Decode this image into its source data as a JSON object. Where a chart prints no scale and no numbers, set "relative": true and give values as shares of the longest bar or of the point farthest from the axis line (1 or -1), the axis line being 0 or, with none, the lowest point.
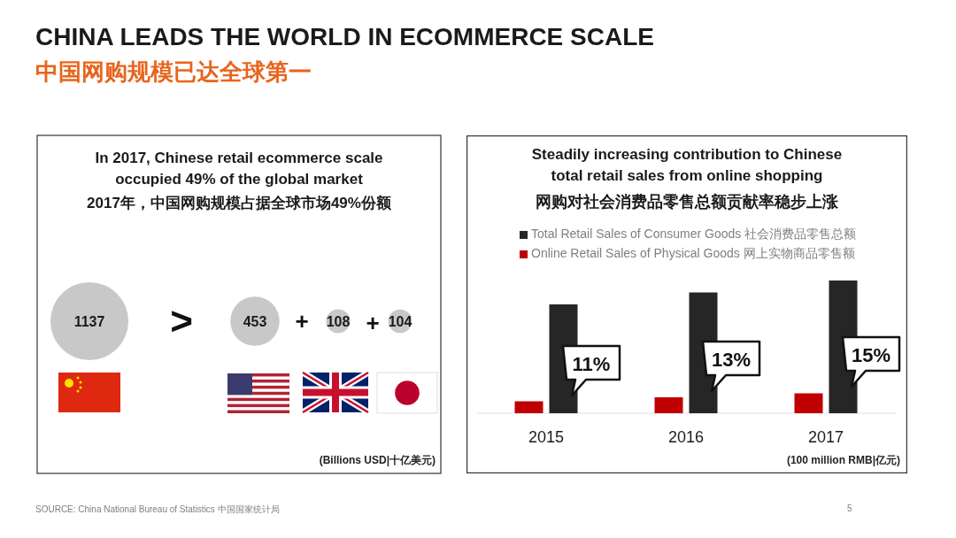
{
  "chart_data": [
    {
      "type": "other",
      "title": "In 2017, Chinese retail ecommerce scale occupied 49% of the global market",
      "subtitle": "2017年，中国网购规模占据全球市场49%份额",
      "categories": [
        null,
        null,
        null,
        null
      ],
      "values": [
        1137,
        453,
        108,
        104
      ],
      "data_labels": true,
      "annotations": [
        "CHINA LEADS THE WORLD IN ECOMMERCE SCALE",
        "中国网购规模已达全球第一",
        ">",
        "+",
        "+",
        "(Billions USD|十亿美元)",
        "SOURCE: China National Bureau of Statistics 中国国家统计局",
        "5"
      ]
    },
    {
      "type": "bar",
      "title": "Steadily increasing contribution to Chinese total retail sales from online shopping",
      "subtitle": "网购对社会消费品零售总额贡献率稳步上涨",
      "categories": [
        "2015",
        "2016",
        "2017"
      ],
      "relative": true,
      "legend": "top",
      "series": [
        {
          "name": "Online Retail Sales of Physical Goods 网上实物商品零售额",
          "color": "#c00000",
          "values": [
            0.09,
            0.12,
            0.15
          ]
        },
        {
          "name": "Total Retail Sales of Consumer Goods 社会消费品零售总额",
          "color": "#262626",
          "values": [
            0.82,
            0.91,
            1
          ]
        }
      ],
      "annotations": [
        {
          "text": "11%",
          "x": "2015"
        },
        {
          "text": "13%",
          "x": "2016"
        },
        {
          "text": "15%",
          "x": "2017"
        },
        "(100 million RMB|亿元)"
      ]
    }
  ]
}
